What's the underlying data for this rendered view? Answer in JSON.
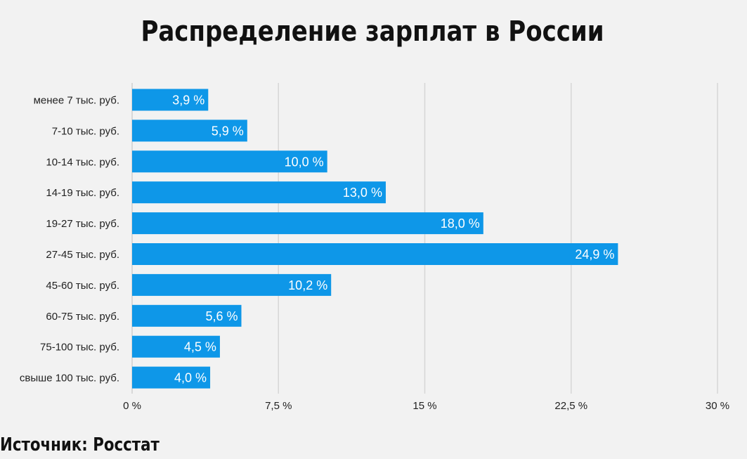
{
  "title": "Распределение зарплат в России",
  "source": "Источник: Росстат",
  "colors": {
    "bar": "#0e97e8",
    "grid": "#d6d6d6",
    "background": "#f2f2f2"
  },
  "chart_data": {
    "type": "bar",
    "orientation": "horizontal",
    "title": "Распределение зарплат в России",
    "categories": [
      "менее 7 тыс. руб.",
      "7-10 тыс. руб.",
      "10-14 тыс. руб.",
      "14-19 тыс. руб.",
      "19-27 тыс. руб.",
      "27-45 тыс. руб.",
      "45-60 тыс. руб.",
      "60-75 тыс. руб.",
      "75-100 тыс. руб.",
      "свыше 100 тыс. руб."
    ],
    "values": [
      3.9,
      5.9,
      10.0,
      13.0,
      18.0,
      24.9,
      10.2,
      5.6,
      4.5,
      4.0
    ],
    "value_labels": [
      "3,9 %",
      "5,9 %",
      "10,0 %",
      "13,0 %",
      "18,0 %",
      "24,9 %",
      "10,2 %",
      "5,6 %",
      "4,5 %",
      "4,0 %"
    ],
    "xlim": [
      0,
      30
    ],
    "xticks": [
      0,
      7.5,
      15,
      22.5,
      30
    ],
    "xtick_labels": [
      "0 %",
      "7,5 %",
      "15 %",
      "22,5 %",
      "30 %"
    ],
    "grid": true
  }
}
